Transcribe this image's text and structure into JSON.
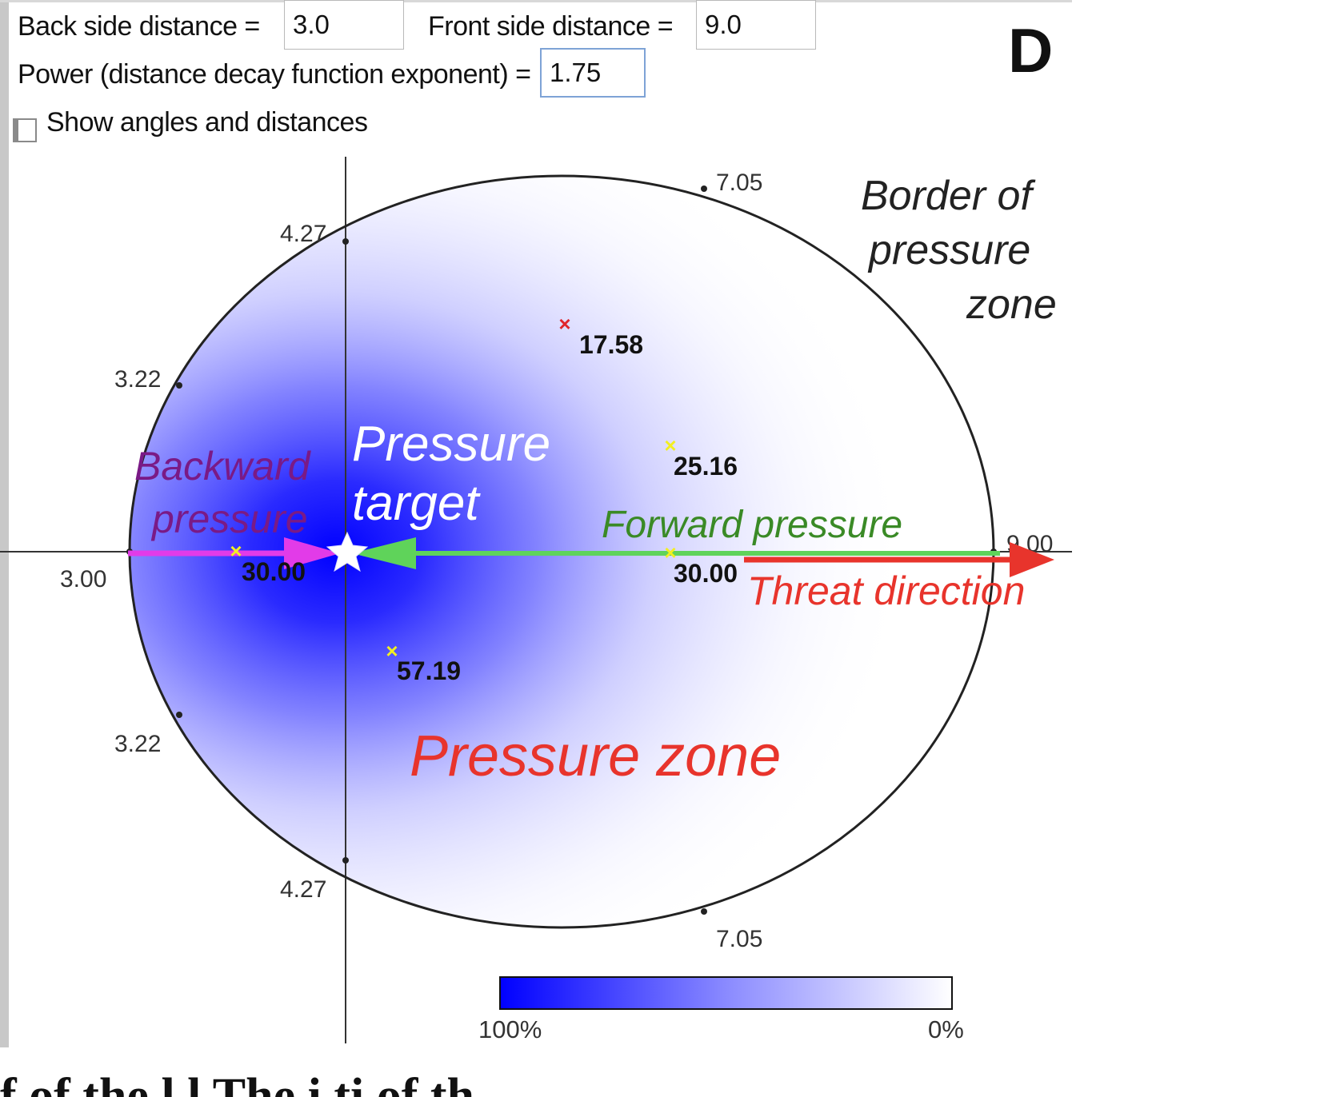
{
  "controls": {
    "back_side_label": "Back side distance =",
    "back_side_value": "3.0",
    "front_side_label": "Front side distance =",
    "front_side_value": "9.0",
    "power_label": "Power (distance decay function exponent) =",
    "power_value": "1.75",
    "show_angles_label": "Show angles and distances",
    "show_angles_checked": false
  },
  "panel_letter": "D",
  "plot": {
    "axis_labels": {
      "top_left": "4.27",
      "top_right": "7.05",
      "upper_left": "3.22",
      "back": "3.00",
      "front": "9.00",
      "lower_left": "3.22",
      "bottom_left": "4.27",
      "bottom_right": "7.05"
    },
    "points": [
      {
        "label": "17.58",
        "color": "#e0252b"
      },
      {
        "label": "25.16",
        "color": "#f2ef22"
      },
      {
        "label": "30.00",
        "color": "#f2ef22"
      },
      {
        "label": "30.00",
        "color": "#f2ef22"
      },
      {
        "label": "57.19",
        "color": "#f2ef22"
      }
    ],
    "annotations": {
      "border_line1": "Border of",
      "border_line2": "pressure",
      "border_line3": "zone",
      "backward_line1": "Backward",
      "backward_line2": "pressure",
      "target_line1": "Pressure",
      "target_line2": "target",
      "forward": "Forward pressure",
      "threat": "Threat direction",
      "zone": "Pressure zone"
    },
    "colors": {
      "pressure": "#0000ff",
      "backward": "#e23be8",
      "backward_text": "#7a1a86",
      "forward": "#5fd35a",
      "forward_text": "#3a8a26",
      "threat": "#e8342c"
    },
    "legend": {
      "max_label": "100%",
      "min_label": "0%"
    }
  },
  "footer_fragment": "f    of the                               l    l   The    i  ti   of th"
}
